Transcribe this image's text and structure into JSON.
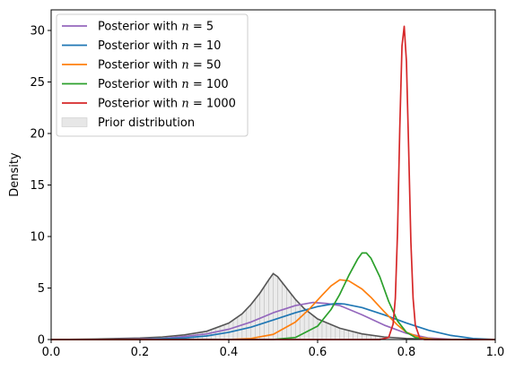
{
  "chart_data": {
    "type": "line",
    "title": "",
    "xlabel": "",
    "ylabel": "Density",
    "xlim": [
      0.0,
      1.0
    ],
    "ylim": [
      0,
      32
    ],
    "xticks": [
      "0.0",
      "0.2",
      "0.4",
      "0.6",
      "0.8",
      "1.0"
    ],
    "yticks": [
      "0",
      "5",
      "10",
      "15",
      "20",
      "25",
      "30"
    ],
    "grid": false,
    "legend_position": "top-left",
    "prior": {
      "name": "Prior distribution",
      "color": "#dddddd",
      "line_color": "#555555",
      "x": [
        0.0,
        0.1,
        0.2,
        0.25,
        0.3,
        0.35,
        0.4,
        0.43,
        0.45,
        0.47,
        0.49,
        0.5,
        0.51,
        0.53,
        0.55,
        0.57,
        0.6,
        0.65,
        0.7,
        0.75,
        0.8,
        0.85,
        0.9,
        1.0
      ],
      "y": [
        0.0,
        0.05,
        0.15,
        0.25,
        0.45,
        0.8,
        1.6,
        2.5,
        3.4,
        4.5,
        5.8,
        6.4,
        6.1,
        5.0,
        3.9,
        3.0,
        2.0,
        1.1,
        0.55,
        0.25,
        0.1,
        0.04,
        0.01,
        0.0
      ]
    },
    "series": [
      {
        "name": "Posterior with n = 5",
        "label_prefix": "Posterior with ",
        "label_n": "n",
        "label_suffix": " = 5",
        "color": "#9467bd",
        "x": [
          0.0,
          0.1,
          0.2,
          0.25,
          0.3,
          0.35,
          0.4,
          0.45,
          0.5,
          0.55,
          0.59,
          0.62,
          0.65,
          0.7,
          0.75,
          0.8,
          0.85,
          0.9,
          0.95,
          1.0
        ],
        "y": [
          0.0,
          0.0,
          0.05,
          0.1,
          0.3,
          0.55,
          1.0,
          1.7,
          2.6,
          3.3,
          3.6,
          3.5,
          3.3,
          2.4,
          1.4,
          0.6,
          0.15,
          0.02,
          0.0,
          0.0
        ]
      },
      {
        "name": "Posterior with n = 10",
        "label_prefix": "Posterior with ",
        "label_n": "n",
        "label_suffix": " = 10",
        "color": "#1f77b4",
        "x": [
          0.0,
          0.2,
          0.3,
          0.35,
          0.4,
          0.45,
          0.5,
          0.55,
          0.6,
          0.64,
          0.66,
          0.7,
          0.75,
          0.8,
          0.85,
          0.9,
          0.95,
          1.0
        ],
        "y": [
          0.0,
          0.0,
          0.15,
          0.35,
          0.7,
          1.2,
          1.9,
          2.6,
          3.2,
          3.5,
          3.45,
          3.1,
          2.4,
          1.6,
          0.9,
          0.4,
          0.1,
          0.0
        ]
      },
      {
        "name": "Posterior with n = 50",
        "label_prefix": "Posterior with ",
        "label_n": "n",
        "label_suffix": " = 50",
        "color": "#ff7f0e",
        "x": [
          0.0,
          0.4,
          0.45,
          0.5,
          0.55,
          0.58,
          0.61,
          0.63,
          0.65,
          0.67,
          0.7,
          0.72,
          0.75,
          0.78,
          0.8,
          0.83,
          0.86,
          0.9,
          1.0
        ],
        "y": [
          0.0,
          0.0,
          0.1,
          0.5,
          1.7,
          2.9,
          4.3,
          5.2,
          5.8,
          5.7,
          4.9,
          4.1,
          2.7,
          1.4,
          0.7,
          0.2,
          0.05,
          0.0,
          0.0
        ]
      },
      {
        "name": "Posterior with n = 100",
        "label_prefix": "Posterior with ",
        "label_n": "n",
        "label_suffix": " = 100",
        "color": "#2ca02c",
        "x": [
          0.0,
          0.5,
          0.55,
          0.6,
          0.63,
          0.65,
          0.67,
          0.69,
          0.7,
          0.71,
          0.72,
          0.74,
          0.76,
          0.78,
          0.8,
          0.82,
          0.84,
          0.87,
          1.0
        ],
        "y": [
          0.0,
          0.0,
          0.2,
          1.3,
          2.9,
          4.4,
          6.2,
          7.8,
          8.4,
          8.4,
          7.9,
          6.1,
          3.7,
          1.8,
          0.7,
          0.2,
          0.05,
          0.0,
          0.0
        ]
      },
      {
        "name": "Posterior with n = 1000",
        "label_prefix": "Posterior with ",
        "label_n": "n",
        "label_suffix": " = 1000",
        "color": "#d62728",
        "x": [
          0.0,
          0.74,
          0.76,
          0.77,
          0.775,
          0.78,
          0.785,
          0.79,
          0.795,
          0.8,
          0.805,
          0.81,
          0.815,
          0.82,
          0.83,
          0.84,
          1.0
        ],
        "y": [
          0.0,
          0.0,
          0.2,
          1.5,
          4.0,
          10.5,
          20.5,
          28.5,
          30.4,
          27.0,
          18.5,
          9.5,
          4.0,
          1.4,
          0.15,
          0.0,
          0.0
        ]
      }
    ]
  }
}
